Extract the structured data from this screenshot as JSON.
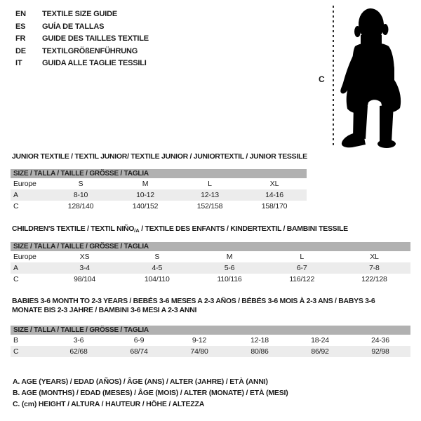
{
  "languages": [
    {
      "code": "EN",
      "title": "TEXTILE SIZE GUIDE"
    },
    {
      "code": "ES",
      "title": "GUÍA DE TALLAS"
    },
    {
      "code": "FR",
      "title": "GUIDE DES TAILLES TEXTILE"
    },
    {
      "code": "DE",
      "title": "TEXTILGRÖßENFÜHRUNG"
    },
    {
      "code": "IT",
      "title": "GUIDA ALLE TAGLIE TESSILI"
    }
  ],
  "figure": {
    "height_label": "C"
  },
  "tables": [
    {
      "title": "JUNIOR TEXTILE / TEXTIL JUNIOR/ TEXTILE JUNIOR / JUNIORTEXTIL / JUNIOR TESSILE",
      "size_header": "SIZE / TALLA / TAILLE / GRÖSSE / TAGLIA",
      "rows": [
        {
          "label": "Europe",
          "values": [
            "S",
            "M",
            "L",
            "XL"
          ]
        },
        {
          "label": "A",
          "values": [
            "8-10",
            "10-12",
            "12-13",
            "14-16"
          ]
        },
        {
          "label": "C",
          "values": [
            "128/140",
            "140/152",
            "152/158",
            "158/170"
          ]
        }
      ]
    },
    {
      "title_parts": {
        "pre": "CHILDREN'S TEXTILE / TEXTIL NIÑO",
        "sub": "/A",
        "post": " / TEXTILE DES ENFANTS / KINDERTEXTIL / BAMBINI TESSILE"
      },
      "size_header": "SIZE / TALLA / TAILLE / GRÖSSE / TAGLIA",
      "rows": [
        {
          "label": "Europe",
          "values": [
            "XS",
            "S",
            "M",
            "L",
            "XL"
          ]
        },
        {
          "label": "A",
          "values": [
            "3-4",
            "4-5",
            "5-6",
            "6-7",
            "7-8"
          ]
        },
        {
          "label": "C",
          "values": [
            "98/104",
            "104/110",
            "110/116",
            "116/122",
            "122/128"
          ]
        }
      ]
    },
    {
      "title": "BABIES 3-6 MONTH TO 2-3 YEARS / BEBÉS 3-6 MESES A 2-3 AÑOS / BÉBÉS 3-6 MOIS À 2-3 ANS / BABYS 3-6 MONATE BIS 2-3 JAHRE / BAMBINI 3-6 MESI A 2-3 ANNI",
      "size_header": "SIZE / TALLA / TAILLE / GRÖSSE / TAGLIA",
      "rows": [
        {
          "label": "B",
          "values": [
            "3-6",
            "6-9",
            "9-12",
            "12-18",
            "18-24",
            "24-36"
          ]
        },
        {
          "label": "C",
          "values": [
            "62/68",
            "68/74",
            "74/80",
            "80/86",
            "86/92",
            "92/98"
          ]
        }
      ]
    }
  ],
  "notes": {
    "a": "A. AGE (YEARS) / EDAD (AÑOS) / ÂGE (ANS) / ALTER (JAHRE) / ETÀ (ANNI)",
    "b": "B. AGE (MONTHS) / EDAD (MESES) / ÂGE (MOIS) / ALTER (MONATE) / ETÀ (MESI)",
    "c": "C. (cm) HEIGHT / ALTURA / HAUTEUR / HÖHE / ALTEZZA"
  },
  "colors": {
    "header_bar": "#b1b1b1",
    "row_alt": "#ececec",
    "text": "#1c1c1c",
    "silhouette": "#000000"
  }
}
